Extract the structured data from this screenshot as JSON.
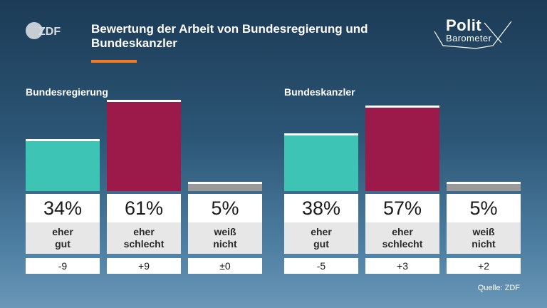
{
  "header": {
    "logo_text": "ZDF",
    "title": "Bewertung der Arbeit von Bundesregierung und Bundeskanzler",
    "accent_color": "#f47a1f"
  },
  "politbarometer": {
    "line1": "Polit",
    "line2": "Barometer"
  },
  "colors": {
    "gut": "#3ec4b4",
    "schlecht": "#9b1a4a",
    "weiss_nicht": "#9a9a9a"
  },
  "chart_data": [
    {
      "type": "bar",
      "title": "Bundesregierung",
      "categories": [
        "eher gut",
        "eher schlecht",
        "weiß nicht"
      ],
      "category_lines": [
        [
          "eher",
          "gut"
        ],
        [
          "eher",
          "schlecht"
        ],
        [
          "weiß",
          "nicht"
        ]
      ],
      "values": [
        34,
        61,
        5
      ],
      "value_labels": [
        "34%",
        "61%",
        "5%"
      ],
      "changes": [
        "-9",
        "+9",
        "±0"
      ],
      "ylim": [
        0,
        61
      ]
    },
    {
      "type": "bar",
      "title": "Bundeskanzler",
      "categories": [
        "eher gut",
        "eher schlecht",
        "weiß nicht"
      ],
      "category_lines": [
        [
          "eher",
          "gut"
        ],
        [
          "eher",
          "schlecht"
        ],
        [
          "weiß",
          "nicht"
        ]
      ],
      "values": [
        38,
        57,
        5
      ],
      "value_labels": [
        "38%",
        "57%",
        "5%"
      ],
      "changes": [
        "-5",
        "+3",
        "+2"
      ],
      "ylim": [
        0,
        61
      ]
    }
  ],
  "source": "Quelle: ZDF"
}
